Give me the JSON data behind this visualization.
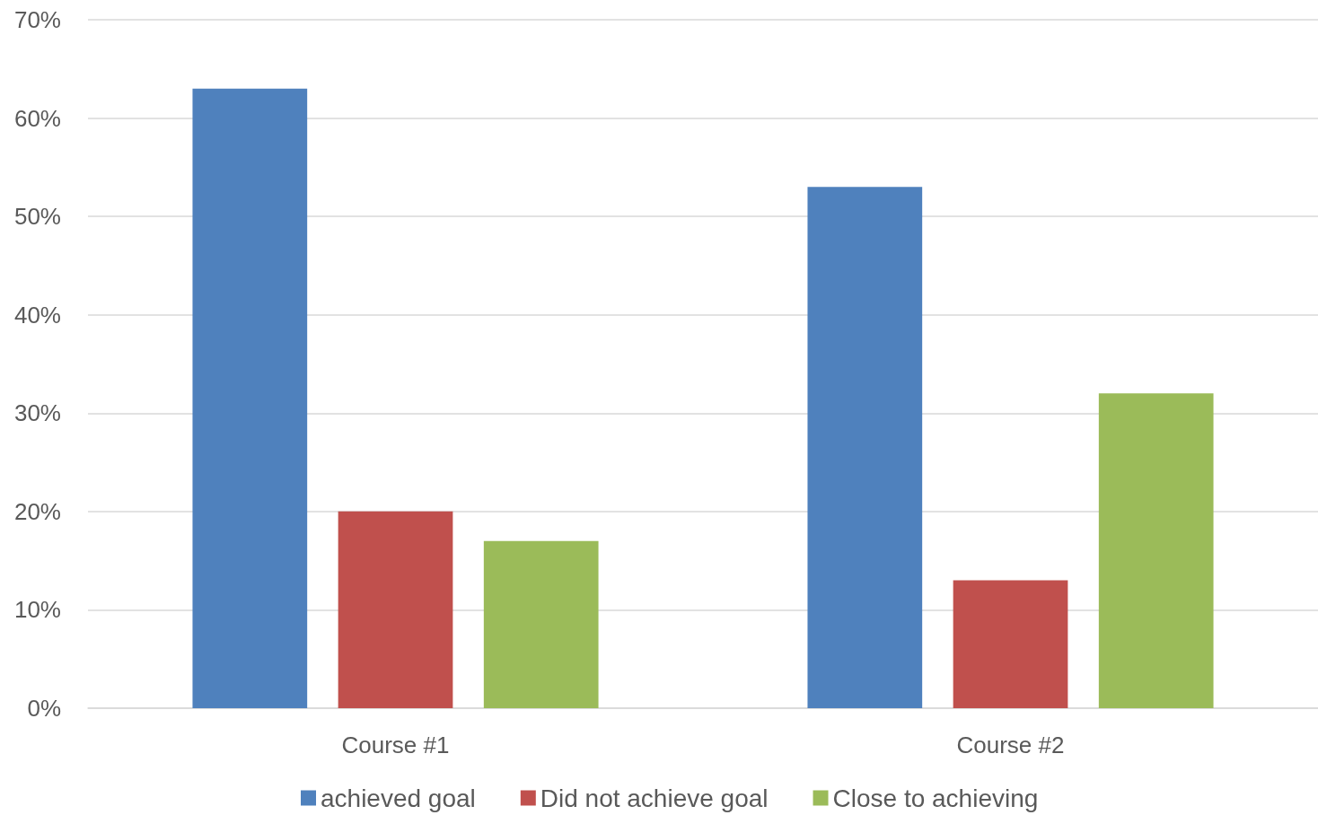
{
  "chart_data": {
    "type": "bar",
    "categories": [
      "Course #1",
      "Course #2"
    ],
    "series": [
      {
        "name": "achieved goal",
        "color": "#4f81bd",
        "values": [
          63,
          53
        ]
      },
      {
        "name": "Did not achieve goal",
        "color": "#c0504d",
        "values": [
          20,
          13
        ]
      },
      {
        "name": "Close to achieving",
        "color": "#9bbb59",
        "values": [
          17,
          32
        ]
      }
    ],
    "ylim": [
      0,
      70
    ],
    "yticks": [
      {
        "value": 0,
        "label": "0%"
      },
      {
        "value": 10,
        "label": "10%"
      },
      {
        "value": 20,
        "label": "20%"
      },
      {
        "value": 30,
        "label": "30%"
      },
      {
        "value": 40,
        "label": "40%"
      },
      {
        "value": 50,
        "label": "50%"
      },
      {
        "value": 60,
        "label": "60%"
      },
      {
        "value": 70,
        "label": "70%"
      }
    ],
    "grid": "y",
    "legend": "bottom"
  }
}
